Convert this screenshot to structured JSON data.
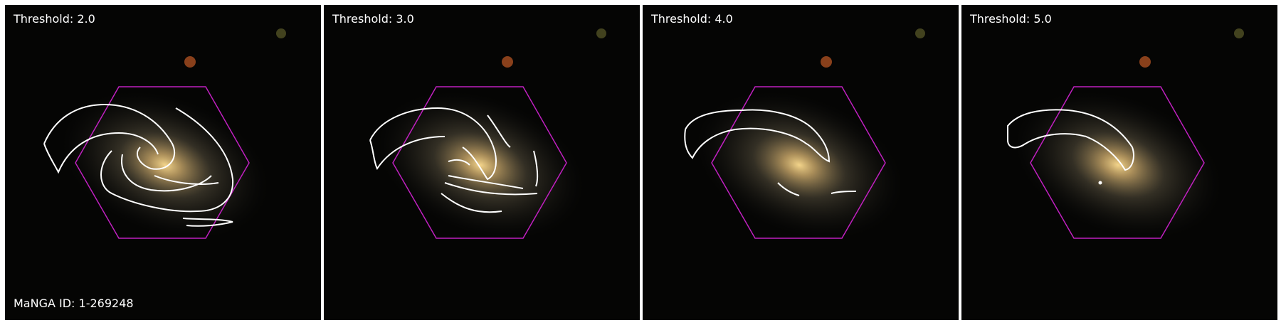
{
  "figure": {
    "galaxy_id_text": "MaNGA ID: 1-269248",
    "panels": [
      {
        "threshold_text": "Threshold: 2.0"
      },
      {
        "threshold_text": "Threshold: 3.0"
      },
      {
        "threshold_text": "Threshold: 4.0"
      },
      {
        "threshold_text": "Threshold: 5.0"
      }
    ],
    "colors": {
      "background": "#050504",
      "galaxy_core": "#e8c27a",
      "contour": "#ffffff",
      "hexagon": "#c020c0"
    }
  }
}
